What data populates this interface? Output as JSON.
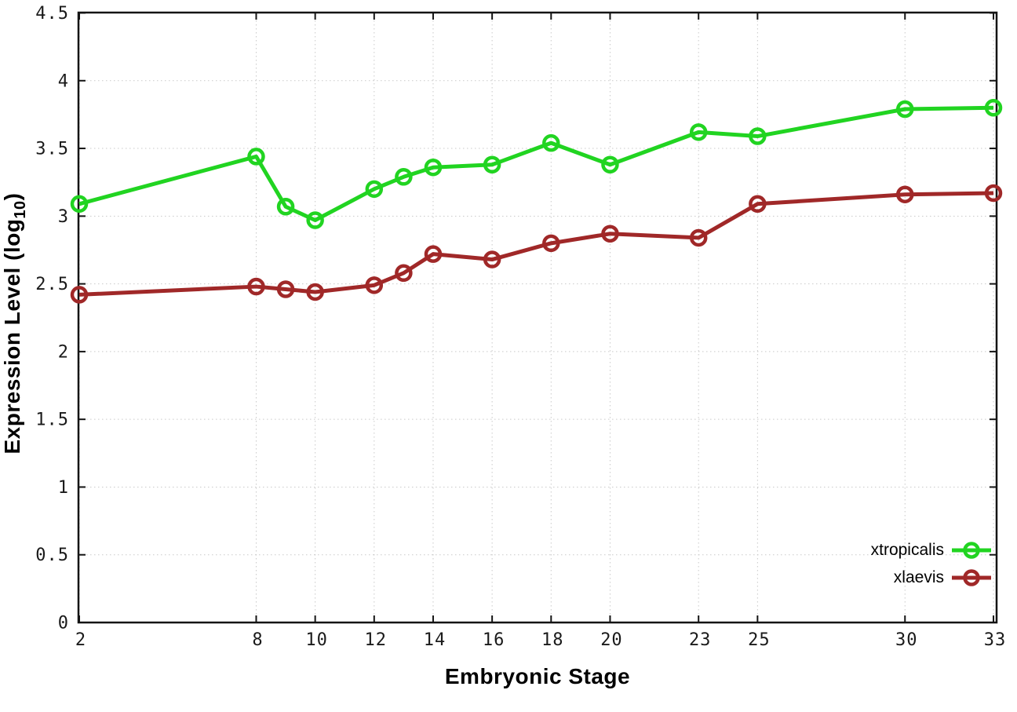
{
  "labels": {
    "x_title": "Embryonic Stage",
    "y_title_prefix": "Expression Level (log",
    "y_title_sub": "10",
    "y_title_suffix": ")"
  },
  "colors": {
    "background": "#ffffff",
    "axis": "#141414",
    "tick_label": "#1a1a1a",
    "grid": "#c9c9c9",
    "xtropicalis": "#21d421",
    "xlaevis": "#a02828"
  },
  "chart_data": {
    "type": "line",
    "title": "",
    "xlabel": "Embryonic Stage",
    "ylabel": "Expression Level (log10)",
    "xlim": [
      2,
      33
    ],
    "ylim": [
      0,
      4.5
    ],
    "grid": true,
    "legend_position": "bottom-right",
    "x_ticks": [
      2,
      8,
      10,
      12,
      14,
      16,
      18,
      20,
      23,
      25,
      30,
      33
    ],
    "x_tick_labels": [
      "2",
      "8",
      "10",
      "12",
      "14",
      "16",
      "18",
      "20",
      "23",
      "25",
      "30",
      "33"
    ],
    "y_ticks": [
      0,
      0.5,
      1,
      1.5,
      2,
      2.5,
      3,
      3.5,
      4,
      4.5
    ],
    "y_tick_labels": [
      "0",
      "0.5",
      "1",
      "1.5",
      "2",
      "2.5",
      "3",
      "3.5",
      "4",
      "4.5"
    ],
    "x": [
      2,
      8,
      9,
      10,
      12,
      13,
      14,
      16,
      18,
      20,
      23,
      25,
      30,
      33
    ],
    "series": [
      {
        "name": "xtropicalis",
        "color": "#21d421",
        "values": [
          3.09,
          3.44,
          3.07,
          2.97,
          3.2,
          3.29,
          3.36,
          3.38,
          3.54,
          3.38,
          3.62,
          3.59,
          3.79,
          3.8
        ]
      },
      {
        "name": "xlaevis",
        "color": "#a02828",
        "values": [
          2.42,
          2.48,
          2.46,
          2.44,
          2.49,
          2.58,
          2.72,
          2.68,
          2.8,
          2.87,
          2.84,
          3.09,
          3.16,
          3.17
        ]
      }
    ]
  }
}
